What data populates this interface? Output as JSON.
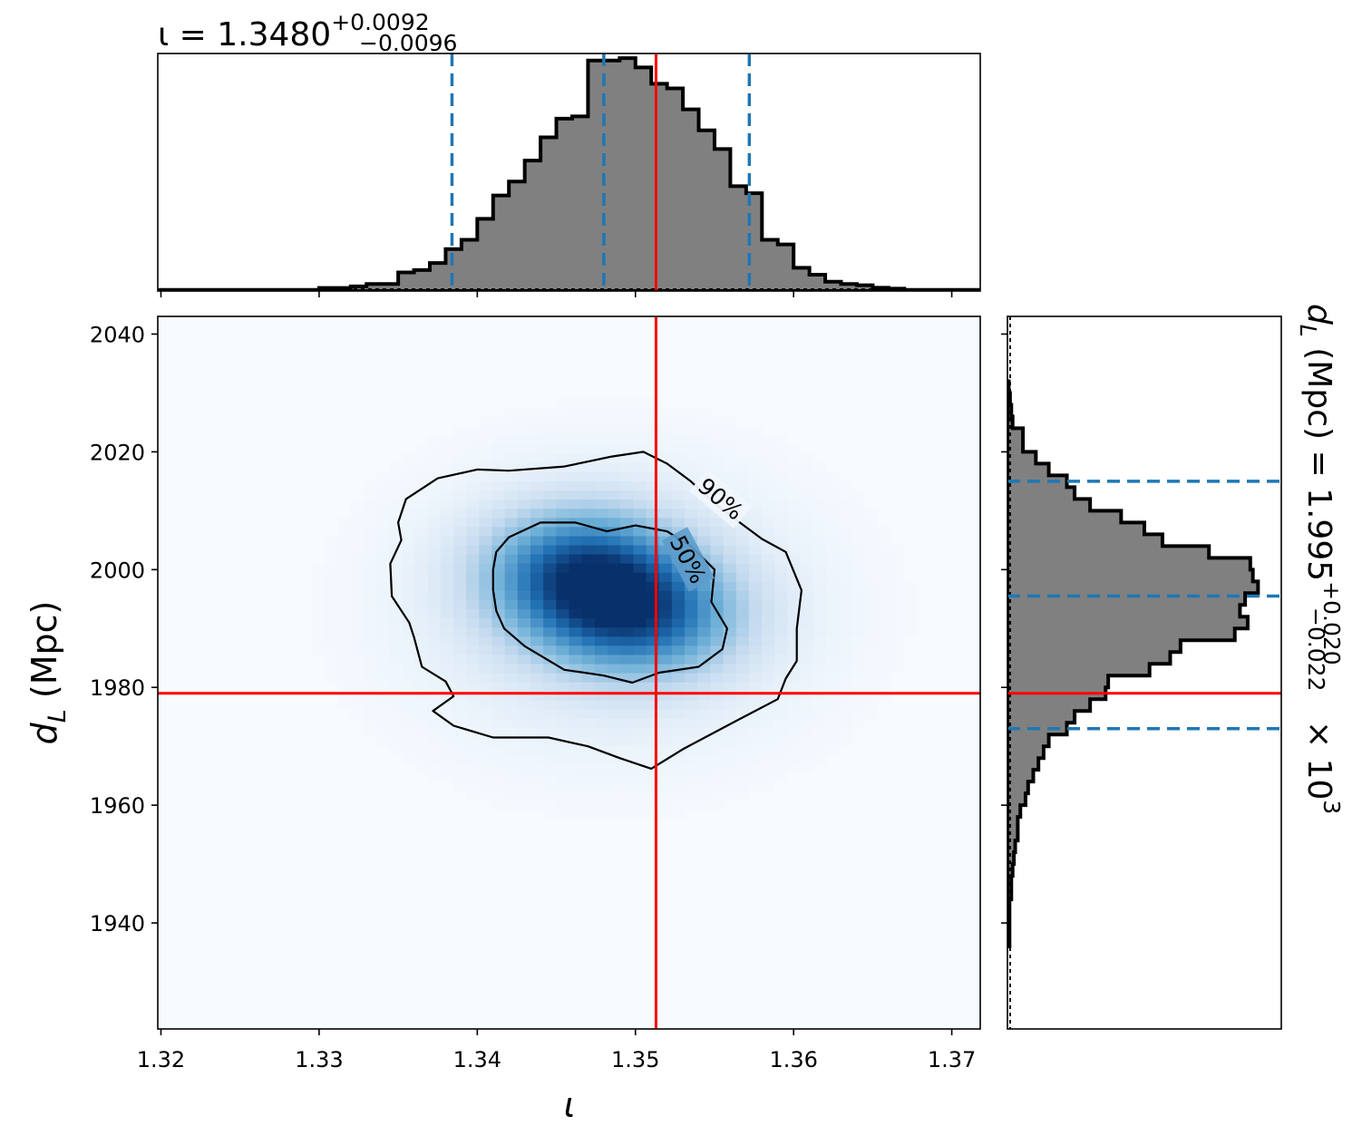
{
  "chart_data": [
    {
      "type": "histogram",
      "panel": "top marginal",
      "title": {
        "base": "ι = 1.3480",
        "sup": "+0.0092",
        "sub": "−0.0096"
      },
      "xlim": [
        1.3198,
        1.3718
      ],
      "ylim": [
        0,
        1.02
      ],
      "bin_edges": [
        1.32,
        1.33,
        1.331,
        1.332,
        1.333,
        1.334,
        1.335,
        1.336,
        1.337,
        1.338,
        1.339,
        1.34,
        1.341,
        1.342,
        1.343,
        1.344,
        1.345,
        1.346,
        1.347,
        1.348,
        1.349,
        1.35,
        1.351,
        1.352,
        1.353,
        1.354,
        1.355,
        1.356,
        1.357,
        1.358,
        1.359,
        1.36,
        1.361,
        1.362,
        1.363,
        1.364,
        1.365,
        1.366,
        1.367,
        1.3718
      ],
      "values": [
        0.005,
        0.013,
        0.013,
        0.02,
        0.03,
        0.03,
        0.08,
        0.09,
        0.12,
        0.18,
        0.22,
        0.31,
        0.41,
        0.47,
        0.56,
        0.66,
        0.74,
        0.75,
        0.99,
        0.99,
        1.0,
        0.96,
        0.89,
        0.87,
        0.78,
        0.69,
        0.61,
        0.45,
        0.42,
        0.22,
        0.2,
        0.1,
        0.07,
        0.04,
        0.03,
        0.025,
        0.014,
        0.01,
        0.005
      ],
      "quantile_lines": [
        1.3384,
        1.348,
        1.3572
      ],
      "truth": 1.3513,
      "xticks": [
        1.32,
        1.33,
        1.34,
        1.35,
        1.36,
        1.37
      ]
    },
    {
      "type": "heatmap",
      "panel": "joint posterior",
      "xlabel": "ι",
      "ylabel": {
        "base": "d",
        "sub": "L",
        "rest": " (Mpc)"
      },
      "xlim": [
        1.3198,
        1.3718
      ],
      "ylim": [
        1922,
        2043
      ],
      "xticks": [
        1.32,
        1.33,
        1.34,
        1.35,
        1.36,
        1.37
      ],
      "xtick_labels": [
        "1.32",
        "1.33",
        "1.34",
        "1.35",
        "1.36",
        "1.37"
      ],
      "yticks": [
        1940,
        1960,
        1980,
        2000,
        2020,
        2040
      ],
      "ytick_labels": [
        "1940",
        "1960",
        "1980",
        "2000",
        "2020",
        "2040"
      ],
      "colormap": "Blues",
      "density_peak": {
        "x": 1.3466,
        "y": 1999.5
      },
      "secondary_lobe": {
        "x": 1.3505,
        "y": 1992
      },
      "truth": {
        "x": 1.3513,
        "y": 1979
      },
      "contours": [
        {
          "label": "90%",
          "level": 0.9,
          "points": [
            [
              1.342,
              2016.8
            ],
            [
              1.3455,
              2017.5
            ],
            [
              1.3485,
              2019.2
            ],
            [
              1.3505,
              2020.0
            ],
            [
              1.352,
              2018.0
            ],
            [
              1.3535,
              2015.0
            ],
            [
              1.3545,
              2012.5
            ],
            [
              1.3555,
              2010.2
            ],
            [
              1.358,
              2005.2
            ],
            [
              1.3595,
              2003.0
            ],
            [
              1.3605,
              1996.5
            ],
            [
              1.3602,
              1990.0
            ],
            [
              1.3602,
              1984.5
            ],
            [
              1.3595,
              1981.5
            ],
            [
              1.359,
              1978.0
            ],
            [
              1.3565,
              1974.5
            ],
            [
              1.353,
              1969.5
            ],
            [
              1.351,
              1966.2
            ],
            [
              1.349,
              1968.0
            ],
            [
              1.347,
              1970.0
            ],
            [
              1.3445,
              1971.5
            ],
            [
              1.341,
              1971.5
            ],
            [
              1.3385,
              1973.5
            ],
            [
              1.3372,
              1976.0
            ],
            [
              1.3385,
              1978.5
            ],
            [
              1.338,
              1981.0
            ],
            [
              1.3365,
              1983.5
            ],
            [
              1.336,
              1988.5
            ],
            [
              1.3357,
              1991.0
            ],
            [
              1.3346,
              1995.5
            ],
            [
              1.3345,
              2001.0
            ],
            [
              1.3352,
              2005.0
            ],
            [
              1.335,
              2008.0
            ],
            [
              1.3355,
              2012.0
            ],
            [
              1.3375,
              2015.5
            ],
            [
              1.34,
              2017.0
            ]
          ]
        },
        {
          "label": "50%",
          "level": 0.5,
          "points": [
            [
              1.342,
              2005.5
            ],
            [
              1.344,
              2008.0
            ],
            [
              1.3462,
              2008.0
            ],
            [
              1.3482,
              2006.5
            ],
            [
              1.35,
              2007.5
            ],
            [
              1.352,
              2006.5
            ],
            [
              1.3535,
              2004.0
            ],
            [
              1.355,
              2000.0
            ],
            [
              1.3548,
              1994.5
            ],
            [
              1.3558,
              1990.0
            ],
            [
              1.3555,
              1986.5
            ],
            [
              1.354,
              1983.5
            ],
            [
              1.3515,
              1982.5
            ],
            [
              1.3498,
              1980.8
            ],
            [
              1.348,
              1982.0
            ],
            [
              1.3455,
              1983.0
            ],
            [
              1.343,
              1987.0
            ],
            [
              1.3417,
              1990.0
            ],
            [
              1.3412,
              1993.0
            ],
            [
              1.341,
              1996.5
            ],
            [
              1.341,
              2000.0
            ],
            [
              1.3412,
              2003.0
            ]
          ]
        }
      ]
    },
    {
      "type": "histogram",
      "panel": "right marginal",
      "orientation": "horizontal",
      "side_label": {
        "base": "d",
        "sub": "L",
        "mid": " (Mpc) = 1.995",
        "sup": "+0.020",
        "subscript": "−0.022",
        "tail": " × 10",
        "exp": "3"
      },
      "ylim": [
        1922,
        2043
      ],
      "xlim": [
        0,
        1.06
      ],
      "bin_edges": [
        1936.0,
        1944.0,
        1948.0,
        1950.0,
        1952.0,
        1954.0,
        1956.0,
        1958.0,
        1960.0,
        1962.0,
        1964.0,
        1966.0,
        1968.0,
        1970.0,
        1972.0,
        1974.0,
        1976.0,
        1978.0,
        1980.0,
        1982.0,
        1984.0,
        1986.0,
        1988.0,
        1990.0,
        1992.0,
        1994.0,
        1996.0,
        1998.0,
        2000.0,
        2002.0,
        2004.0,
        2006.0,
        2008.0,
        2010.0,
        2012.0,
        2014.0,
        2016.0,
        2018.0,
        2020.0,
        2022.0,
        2024.0,
        2026.0,
        2028.0,
        2030.0,
        2032.0
      ],
      "values": [
        0.008,
        0.015,
        0.02,
        0.025,
        0.03,
        0.04,
        0.04,
        0.05,
        0.07,
        0.08,
        0.1,
        0.12,
        0.14,
        0.16,
        0.23,
        0.26,
        0.32,
        0.38,
        0.39,
        0.55,
        0.63,
        0.67,
        0.88,
        0.93,
        0.9,
        0.92,
        0.97,
        0.95,
        0.94,
        0.78,
        0.6,
        0.53,
        0.44,
        0.32,
        0.26,
        0.23,
        0.16,
        0.11,
        0.06,
        0.06,
        0.02,
        0.015,
        0.01,
        0.005
      ],
      "quantile_lines": [
        1973,
        1995.5,
        2015
      ],
      "truth": 1979,
      "yticks": [
        1940,
        1960,
        1980,
        2000,
        2020,
        2040
      ]
    }
  ],
  "colors": {
    "hist_fill": "#808080",
    "hist_edge": "#000000",
    "quantile": "#1f77b4",
    "truth": "#ff0000",
    "contour": "#000000",
    "map_low": "#f7fbff",
    "map_high": "#08306b"
  }
}
